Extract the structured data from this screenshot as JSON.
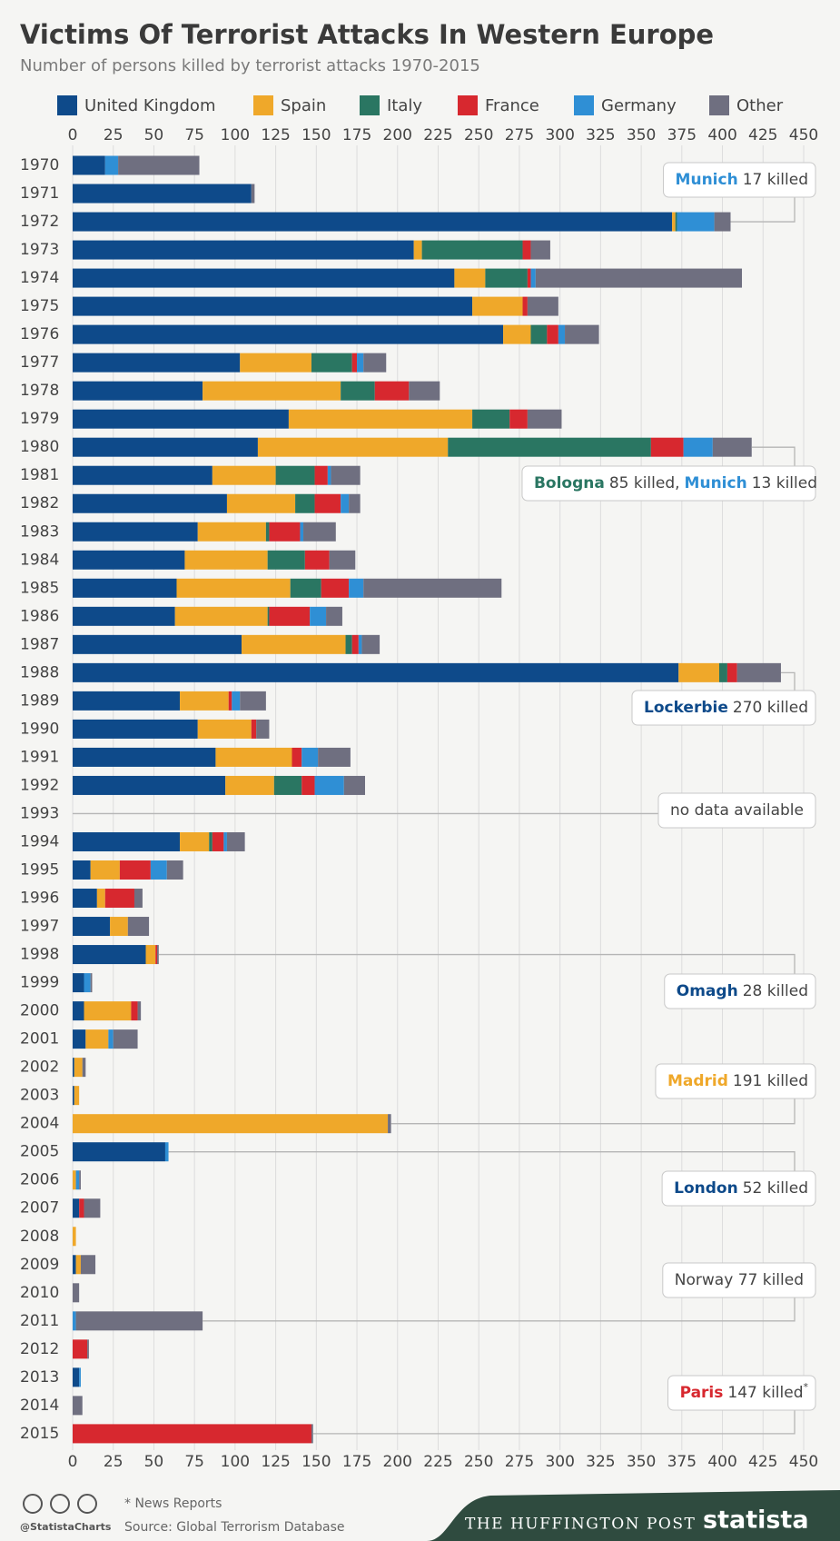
{
  "chart_data": {
    "type": "stacked-bar-horizontal",
    "title": "Victims Of Terrorist Attacks In Western Europe",
    "subtitle": "Number of persons killed by terrorist attacks 1970-2015",
    "categories": [
      "1970",
      "1971",
      "1972",
      "1973",
      "1974",
      "1975",
      "1976",
      "1977",
      "1978",
      "1979",
      "1980",
      "1981",
      "1982",
      "1983",
      "1984",
      "1985",
      "1986",
      "1987",
      "1988",
      "1989",
      "1990",
      "1991",
      "1992",
      "1993",
      "1994",
      "1995",
      "1996",
      "1997",
      "1998",
      "1999",
      "2000",
      "2001",
      "2002",
      "2003",
      "2004",
      "2005",
      "2006",
      "2007",
      "2008",
      "2009",
      "2010",
      "2011",
      "2012",
      "2013",
      "2014",
      "2015"
    ],
    "series": [
      {
        "name": "United Kingdom",
        "color": "#0e4a8a",
        "values": [
          20,
          110,
          369,
          210,
          235,
          246,
          265,
          103,
          80,
          133,
          114,
          86,
          95,
          77,
          69,
          64,
          63,
          104,
          373,
          66,
          77,
          88,
          94,
          null,
          66,
          11,
          15,
          23,
          45,
          7,
          7,
          8,
          1,
          1,
          0,
          57,
          0,
          4,
          0,
          2,
          0,
          0,
          0,
          4,
          0,
          0
        ]
      },
      {
        "name": "Spain",
        "color": "#efa82a",
        "values": [
          0,
          0,
          2,
          5,
          19,
          31,
          17,
          44,
          85,
          113,
          117,
          39,
          42,
          42,
          51,
          70,
          57,
          64,
          25,
          30,
          33,
          47,
          30,
          null,
          18,
          18,
          5,
          11,
          6,
          0,
          29,
          14,
          5,
          3,
          194,
          0,
          2,
          0,
          2,
          3,
          0,
          0,
          0,
          0,
          0,
          0
        ]
      },
      {
        "name": "Italy",
        "color": "#2a7662",
        "values": [
          0,
          0,
          1,
          62,
          26,
          0,
          10,
          25,
          21,
          23,
          125,
          24,
          12,
          2,
          23,
          19,
          1,
          4,
          5,
          0,
          0,
          0,
          17,
          null,
          2,
          0,
          0,
          0,
          0,
          0,
          0,
          0,
          0,
          0,
          0,
          0,
          0,
          0,
          0,
          0,
          0,
          0,
          0,
          0,
          0,
          0
        ]
      },
      {
        "name": "France",
        "color": "#d7282f",
        "values": [
          0,
          0,
          0,
          5,
          2,
          3,
          7,
          3,
          21,
          11,
          20,
          8,
          16,
          19,
          15,
          17,
          25,
          4,
          6,
          2,
          3,
          6,
          8,
          null,
          7,
          19,
          18,
          0,
          1,
          0,
          4,
          0,
          0,
          0,
          0,
          0,
          0,
          3,
          0,
          0,
          0,
          0,
          9,
          0,
          0,
          147
        ]
      },
      {
        "name": "Germany",
        "color": "#2f8fd5",
        "values": [
          8,
          0,
          23,
          0,
          3,
          0,
          4,
          4,
          0,
          0,
          18,
          2,
          5,
          2,
          0,
          9,
          10,
          2,
          0,
          5,
          0,
          10,
          18,
          null,
          2,
          10,
          0,
          0,
          0,
          4,
          0,
          3,
          0,
          0,
          0,
          2,
          2,
          0,
          0,
          0,
          0,
          2,
          0,
          1,
          0,
          0
        ]
      },
      {
        "name": "Other",
        "color": "#6f6f80",
        "values": [
          50,
          2,
          10,
          12,
          127,
          19,
          21,
          14,
          19,
          21,
          24,
          18,
          7,
          20,
          16,
          85,
          10,
          11,
          27,
          16,
          8,
          20,
          13,
          null,
          11,
          10,
          5,
          13,
          1,
          1,
          2,
          15,
          2,
          0,
          2,
          0,
          1,
          10,
          0,
          9,
          4,
          78,
          1,
          0,
          6,
          1
        ]
      }
    ],
    "xlim": [
      0,
      450
    ],
    "xticks": [
      0,
      25,
      50,
      75,
      100,
      125,
      150,
      175,
      200,
      225,
      250,
      275,
      300,
      325,
      350,
      375,
      400,
      425,
      450
    ],
    "grid": true,
    "annotations": [
      {
        "segments": [
          {
            "text": "Munich",
            "color": "#2f8fd5"
          },
          {
            "text": "17 killed"
          }
        ]
      },
      {
        "segments": [
          {
            "text": "Bologna",
            "color": "#2a7662"
          },
          {
            "text": "85 killed,"
          },
          {
            "text": "Munich",
            "color": "#2f8fd5"
          },
          {
            "text": "13 killed"
          }
        ]
      },
      {
        "segments": [
          {
            "text": "Lockerbie",
            "color": "#0e4a8a"
          },
          {
            "text": "270 killed"
          }
        ]
      },
      {
        "segments": [
          {
            "text": "no data available"
          }
        ]
      },
      {
        "segments": [
          {
            "text": "Omagh",
            "color": "#0e4a8a"
          },
          {
            "text": "28 killed"
          }
        ]
      },
      {
        "segments": [
          {
            "text": "Madrid",
            "color": "#efa82a"
          },
          {
            "text": "191 killed"
          }
        ]
      },
      {
        "segments": [
          {
            "text": "London",
            "color": "#0e4a8a"
          },
          {
            "text": "52 killed"
          }
        ]
      },
      {
        "segments": [
          {
            "text": "Norway 77 killed"
          }
        ]
      },
      {
        "segments": [
          {
            "text": "Paris",
            "color": "#d7282f"
          },
          {
            "text": "147 killed"
          },
          {
            "text": "*",
            "superscript": true
          }
        ]
      }
    ]
  },
  "footer": {
    "note": "* News Reports",
    "source": "Source: Global Terrorism Database",
    "handle": "@StatistaCharts",
    "partner": "THE HUFFINGTON POST",
    "brand": "statista"
  }
}
